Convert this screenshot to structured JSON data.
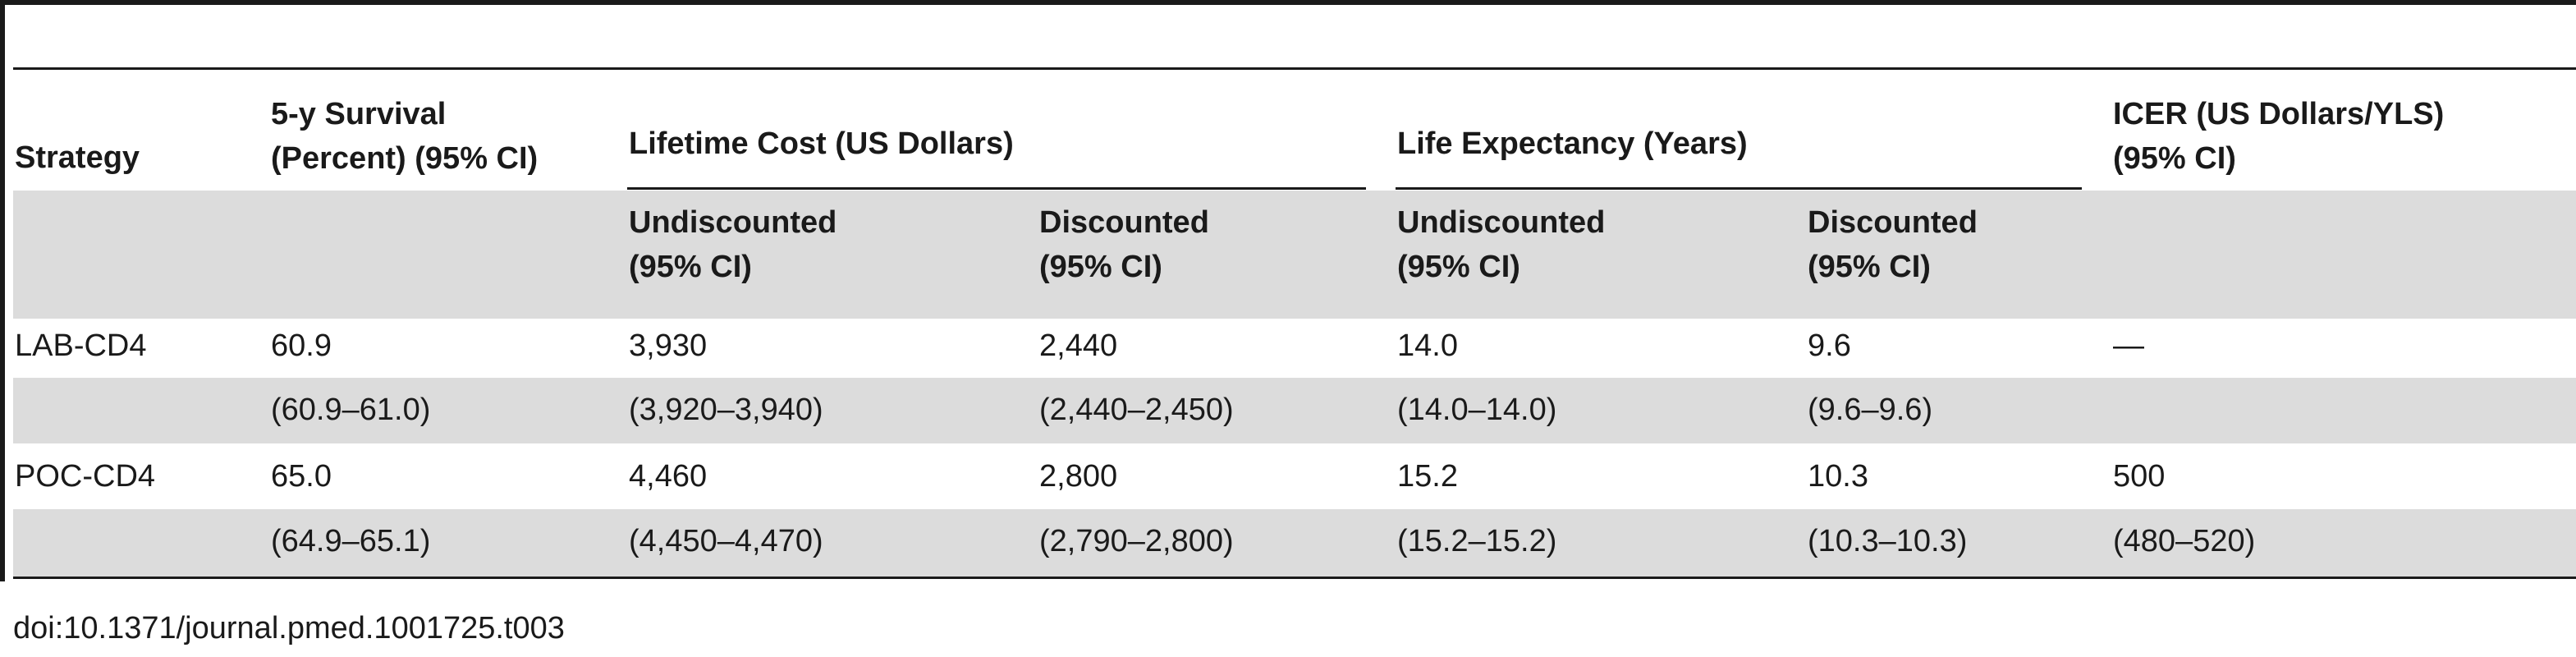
{
  "table": {
    "header": {
      "strategy": "Strategy",
      "survival": "5-y Survival\n(Percent) (95% CI)",
      "lifetime_cost": "Lifetime Cost (US Dollars)",
      "life_expectancy": "Life Expectancy (Years)",
      "icer": "ICER (US Dollars/YLS)\n(95% CI)",
      "cost_undiscounted": "Undiscounted\n(95% CI)",
      "cost_discounted": "Discounted\n(95% CI)",
      "le_undiscounted": "Undiscounted\n(95% CI)",
      "le_discounted": "Discounted\n(95% CI)"
    },
    "rows": [
      {
        "strategy": "LAB-CD4",
        "survival": "60.9",
        "cost_undiscounted": "3,930",
        "cost_discounted": "2,440",
        "le_undiscounted": "14.0",
        "le_discounted": "9.6",
        "icer": "—",
        "ci": {
          "survival": "(60.9–61.0)",
          "cost_undiscounted": "(3,920–3,940)",
          "cost_discounted": "(2,440–2,450)",
          "le_undiscounted": "(14.0–14.0)",
          "le_discounted": "(9.6–9.6)",
          "icer": ""
        }
      },
      {
        "strategy": "POC-CD4",
        "survival": "65.0",
        "cost_undiscounted": "4,460",
        "cost_discounted": "2,800",
        "le_undiscounted": "15.2",
        "le_discounted": "10.3",
        "icer": "500",
        "ci": {
          "survival": "(64.9–65.1)",
          "cost_undiscounted": "(4,450–4,470)",
          "cost_discounted": "(2,790–2,800)",
          "le_undiscounted": "(15.2–15.2)",
          "le_discounted": "(10.3–10.3)",
          "icer": "(480–520)"
        }
      }
    ]
  },
  "caption": "doi:10.1371/journal.pmed.1001725.t003"
}
